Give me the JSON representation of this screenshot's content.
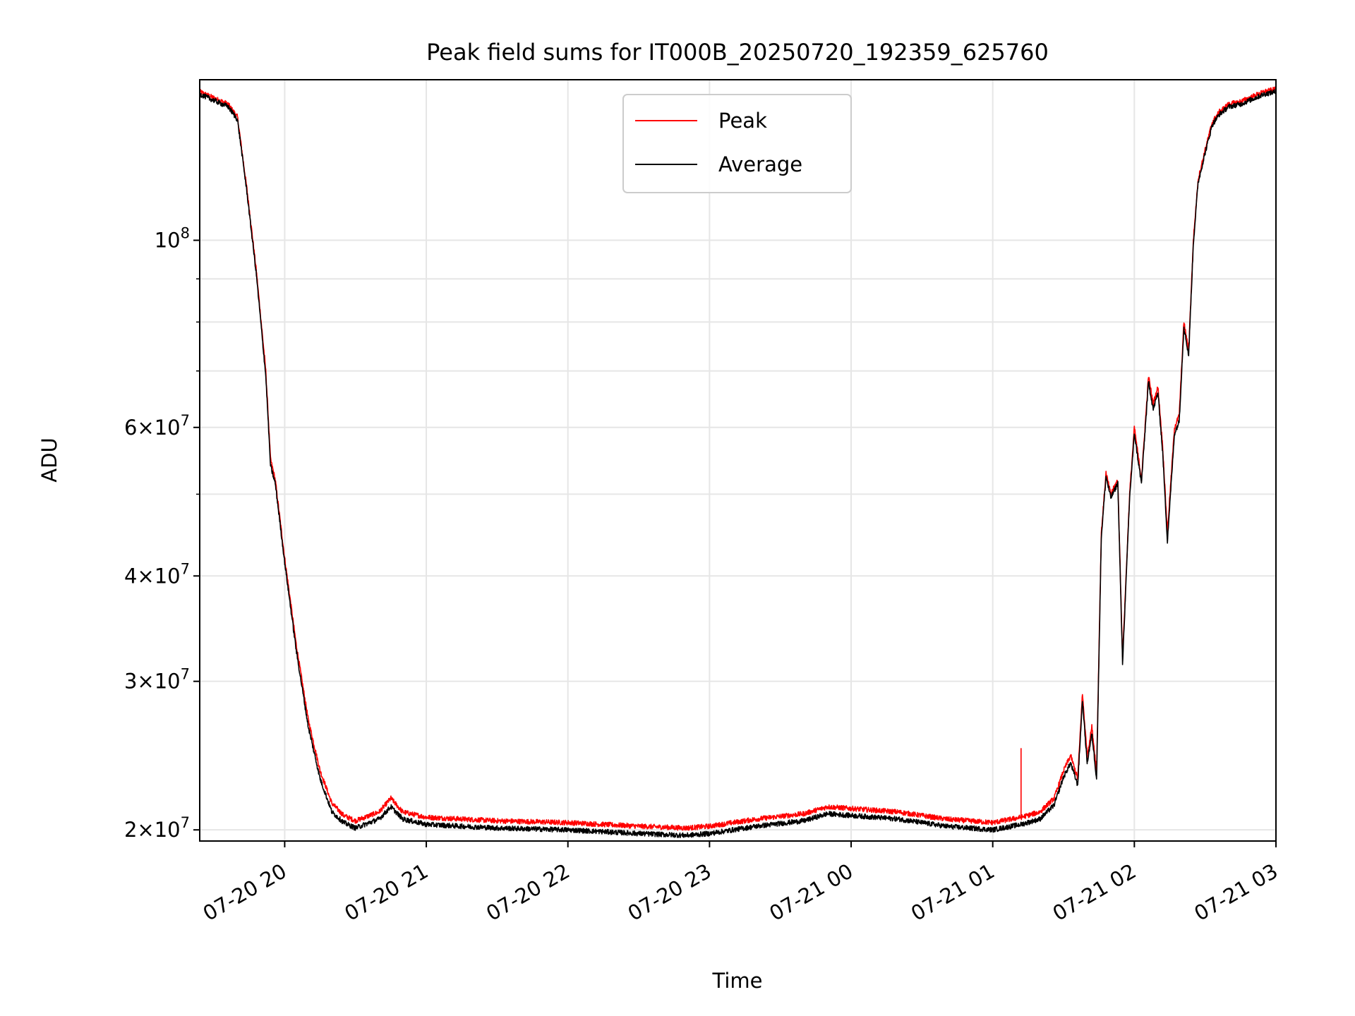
{
  "chart_data": {
    "type": "line",
    "title": "Peak field sums for IT000B_20250720_192359_625760",
    "xlabel": "Time",
    "ylabel": "ADU",
    "y_scale": "log",
    "grid": true,
    "legend_placement": "upper center",
    "xlim": [
      "2025-07-20 19:24",
      "2025-07-21 03:00"
    ],
    "ylim": [
      19400000,
      155000000
    ],
    "x_ticks": [
      "07-20 20",
      "07-20 21",
      "07-20 22",
      "07-20 23",
      "07-21 00",
      "07-21 01",
      "07-21 02",
      "07-21 03"
    ],
    "y_ticks": [
      {
        "value": 20000000,
        "mantissa": "2",
        "base": "10",
        "exponent": "7"
      },
      {
        "value": 30000000,
        "mantissa": "3",
        "base": "10",
        "exponent": "7"
      },
      {
        "value": 40000000,
        "mantissa": "4",
        "base": "10",
        "exponent": "7"
      },
      {
        "value": 60000000,
        "mantissa": "6",
        "base": "10",
        "exponent": "7"
      },
      {
        "value": 100000000,
        "mantissa": "",
        "base": "10",
        "exponent": "8"
      }
    ],
    "y_minor_ticks": [
      50000000,
      70000000,
      80000000,
      90000000
    ],
    "series": [
      {
        "name": "Peak",
        "color": "#ff0000",
        "x": [
          "2025-07-20 19:24",
          "2025-07-20 19:36",
          "2025-07-20 19:40",
          "2025-07-20 19:44",
          "2025-07-20 19:48",
          "2025-07-20 19:52",
          "2025-07-20 19:54",
          "2025-07-20 19:56",
          "2025-07-20 20:00",
          "2025-07-20 20:05",
          "2025-07-20 20:10",
          "2025-07-20 20:15",
          "2025-07-20 20:20",
          "2025-07-20 20:25",
          "2025-07-20 20:30",
          "2025-07-20 20:40",
          "2025-07-20 20:45",
          "2025-07-20 20:50",
          "2025-07-20 21:00",
          "2025-07-20 21:30",
          "2025-07-20 22:00",
          "2025-07-20 22:30",
          "2025-07-20 22:50",
          "2025-07-20 23:00",
          "2025-07-20 23:20",
          "2025-07-20 23:40",
          "2025-07-20 23:50",
          "2025-07-21 00:00",
          "2025-07-21 00:20",
          "2025-07-21 00:40",
          "2025-07-21 01:00",
          "2025-07-21 01:12",
          "2025-07-21 01:20",
          "2025-07-21 01:26",
          "2025-07-21 01:30",
          "2025-07-21 01:33",
          "2025-07-21 01:36",
          "2025-07-21 01:38",
          "2025-07-21 01:40",
          "2025-07-21 01:42",
          "2025-07-21 01:44",
          "2025-07-21 01:46",
          "2025-07-21 01:48",
          "2025-07-21 01:50",
          "2025-07-21 01:53",
          "2025-07-21 01:55",
          "2025-07-21 01:58",
          "2025-07-21 02:00",
          "2025-07-21 02:03",
          "2025-07-21 02:06",
          "2025-07-21 02:08",
          "2025-07-21 02:10",
          "2025-07-21 02:12",
          "2025-07-21 02:14",
          "2025-07-21 02:17",
          "2025-07-21 02:19",
          "2025-07-21 02:21",
          "2025-07-21 02:23",
          "2025-07-21 02:25",
          "2025-07-21 02:27",
          "2025-07-21 02:30",
          "2025-07-21 02:33",
          "2025-07-21 02:36",
          "2025-07-21 02:40",
          "2025-07-21 02:45",
          "2025-07-21 02:50",
          "2025-07-21 02:55",
          "2025-07-21 03:00"
        ],
        "y": [
          150000000,
          145000000,
          140000000,
          115000000,
          92000000,
          70000000,
          55000000,
          52000000,
          42000000,
          33000000,
          27000000,
          23500000,
          21500000,
          20800000,
          20500000,
          21000000,
          21800000,
          21000000,
          20700000,
          20500000,
          20400000,
          20200000,
          20100000,
          20200000,
          20600000,
          20900000,
          21300000,
          21200000,
          21000000,
          20600000,
          20400000,
          20700000,
          21000000,
          21800000,
          23500000,
          24500000,
          23000000,
          29000000,
          24500000,
          26500000,
          23500000,
          45000000,
          53000000,
          50000000,
          52000000,
          32000000,
          50000000,
          60000000,
          52000000,
          69000000,
          64000000,
          67000000,
          57000000,
          45000000,
          60000000,
          62000000,
          80000000,
          74000000,
          100000000,
          118000000,
          128000000,
          138000000,
          142000000,
          145000000,
          146000000,
          148000000,
          150000000,
          151000000
        ]
      },
      {
        "name": "Average",
        "color": "#000000",
        "x": [
          "2025-07-20 19:24",
          "2025-07-20 19:36",
          "2025-07-20 19:40",
          "2025-07-20 19:44",
          "2025-07-20 19:48",
          "2025-07-20 19:52",
          "2025-07-20 19:54",
          "2025-07-20 19:56",
          "2025-07-20 20:00",
          "2025-07-20 20:05",
          "2025-07-20 20:10",
          "2025-07-20 20:15",
          "2025-07-20 20:20",
          "2025-07-20 20:25",
          "2025-07-20 20:30",
          "2025-07-20 20:40",
          "2025-07-20 20:45",
          "2025-07-20 20:50",
          "2025-07-20 21:00",
          "2025-07-20 21:30",
          "2025-07-20 22:00",
          "2025-07-20 22:30",
          "2025-07-20 22:50",
          "2025-07-20 23:00",
          "2025-07-20 23:20",
          "2025-07-20 23:40",
          "2025-07-20 23:50",
          "2025-07-21 00:00",
          "2025-07-21 00:20",
          "2025-07-21 00:40",
          "2025-07-21 01:00",
          "2025-07-21 01:12",
          "2025-07-21 01:20",
          "2025-07-21 01:26",
          "2025-07-21 01:30",
          "2025-07-21 01:33",
          "2025-07-21 01:36",
          "2025-07-21 01:38",
          "2025-07-21 01:40",
          "2025-07-21 01:42",
          "2025-07-21 01:44",
          "2025-07-21 01:46",
          "2025-07-21 01:48",
          "2025-07-21 01:50",
          "2025-07-21 01:53",
          "2025-07-21 01:55",
          "2025-07-21 01:58",
          "2025-07-21 02:00",
          "2025-07-21 02:03",
          "2025-07-21 02:06",
          "2025-07-21 02:08",
          "2025-07-21 02:10",
          "2025-07-21 02:12",
          "2025-07-21 02:14",
          "2025-07-21 02:17",
          "2025-07-21 02:19",
          "2025-07-21 02:21",
          "2025-07-21 02:23",
          "2025-07-21 02:25",
          "2025-07-21 02:27",
          "2025-07-21 02:30",
          "2025-07-21 02:33",
          "2025-07-21 02:36",
          "2025-07-21 02:40",
          "2025-07-21 02:45",
          "2025-07-21 02:50",
          "2025-07-21 02:55",
          "2025-07-21 03:00"
        ],
        "y": [
          149000000,
          144000000,
          139000000,
          114000000,
          91000000,
          69000000,
          54000000,
          51500000,
          41500000,
          32500000,
          26500000,
          23000000,
          21000000,
          20400000,
          20100000,
          20600000,
          21300000,
          20600000,
          20300000,
          20100000,
          20000000,
          19800000,
          19700000,
          19800000,
          20200000,
          20500000,
          20900000,
          20800000,
          20600000,
          20200000,
          20000000,
          20300000,
          20600000,
          21400000,
          23100000,
          24000000,
          22600000,
          28500000,
          24000000,
          26000000,
          23000000,
          44500000,
          52500000,
          49500000,
          51500000,
          31500000,
          49500000,
          59000000,
          51500000,
          68000000,
          63000000,
          66000000,
          56000000,
          44000000,
          59000000,
          61000000,
          79000000,
          73000000,
          99000000,
          117000000,
          127000000,
          137000000,
          141000000,
          144000000,
          145000000,
          147000000,
          149000000,
          150000000
        ]
      }
    ]
  }
}
